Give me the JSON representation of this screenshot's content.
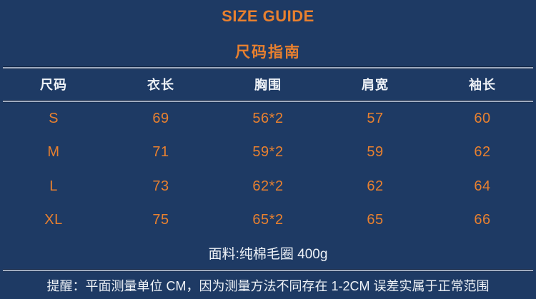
{
  "colors": {
    "background": "#1e3a64",
    "accent_orange": "#e8802f",
    "text_white": "#eef2f7",
    "divider_line": "#9fabbf"
  },
  "titles": {
    "en": "SIZE GUIDE",
    "zh": "尺码指南"
  },
  "table": {
    "headers": [
      "尺码",
      "衣长",
      "胸围",
      "肩宽",
      "袖长"
    ],
    "rows": [
      {
        "size": "S",
        "length": "69",
        "bust": "56*2",
        "shoulder": "57",
        "sleeve": "60"
      },
      {
        "size": "M",
        "length": "71",
        "bust": "59*2",
        "shoulder": "59",
        "sleeve": "62"
      },
      {
        "size": "L",
        "length": "73",
        "bust": "62*2",
        "shoulder": "62",
        "sleeve": "64"
      },
      {
        "size": "XL",
        "length": "75",
        "bust": "65*2",
        "shoulder": "65",
        "sleeve": "66"
      }
    ]
  },
  "fabric_note": "面料:纯棉毛圈 400g",
  "reminder": "提醒：平面测量单位 CM，因为测量方法不同存在 1-2CM 误差实属于正常范围"
}
